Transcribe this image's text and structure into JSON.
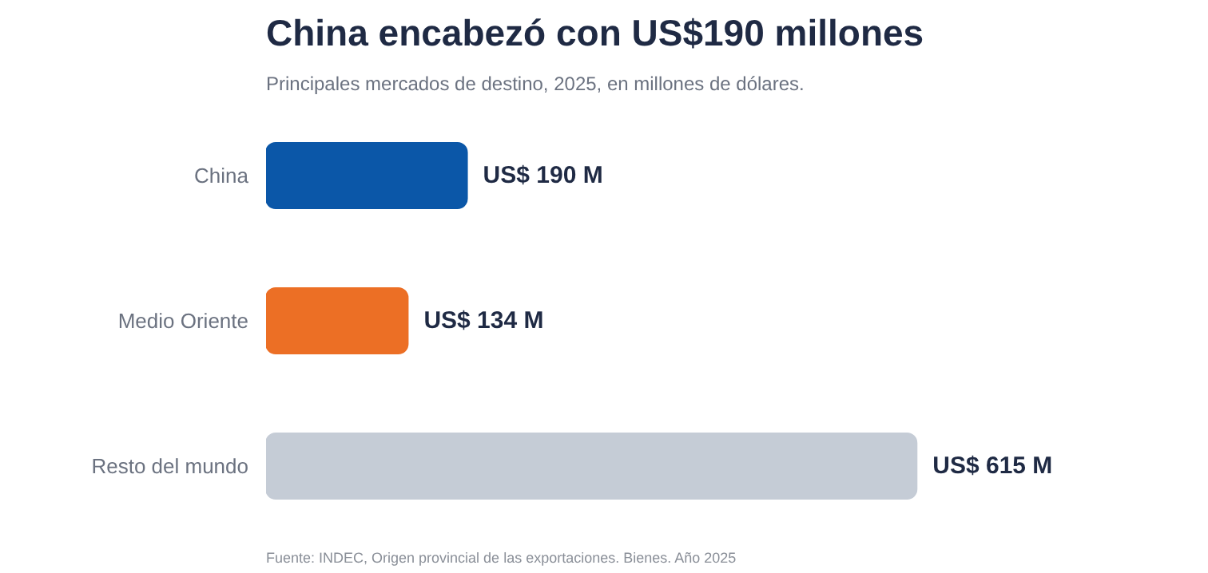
{
  "chart_data": {
    "type": "bar",
    "orientation": "horizontal",
    "title": "China encabezó con US$190 millones",
    "subtitle": "Principales mercados de destino, 2025, en millones de dólares.",
    "categories": [
      "China",
      "Medio Oriente",
      "Resto del mundo"
    ],
    "values": [
      190,
      134,
      615
    ],
    "colors": [
      "#0b57a8",
      "#ec6f25",
      "#c5ccd6"
    ],
    "value_labels": [
      "US$ 190 M",
      "US$ 134 M",
      "US$ 615 M"
    ],
    "annotations": [
      "Fuente: INDEC, Origen provincial de las exportaciones. Bienes. Año 2025"
    ],
    "grid": false
  }
}
